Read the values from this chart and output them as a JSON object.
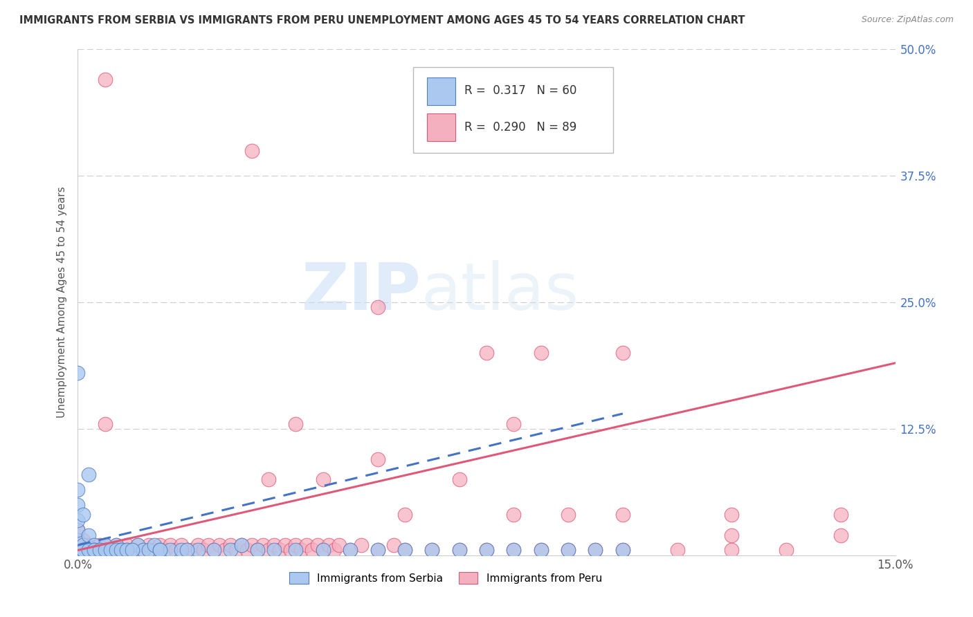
{
  "title": "IMMIGRANTS FROM SERBIA VS IMMIGRANTS FROM PERU UNEMPLOYMENT AMONG AGES 45 TO 54 YEARS CORRELATION CHART",
  "source": "Source: ZipAtlas.com",
  "ylabel": "Unemployment Among Ages 45 to 54 years",
  "xlim": [
    0.0,
    0.15
  ],
  "ylim": [
    0.0,
    0.5
  ],
  "ytick_values": [
    0.125,
    0.25,
    0.375,
    0.5
  ],
  "ytick_labels": [
    "12.5%",
    "25.0%",
    "37.5%",
    "50.0%"
  ],
  "xtick_values": [
    0.0,
    0.15
  ],
  "xtick_labels": [
    "0.0%",
    "15.0%"
  ],
  "legend_label1": "Immigrants from Serbia",
  "legend_label2": "Immigrants from Peru",
  "R1": "0.317",
  "N1": "60",
  "R2": "0.290",
  "N2": "89",
  "color_serbia": "#aac8f0",
  "color_peru": "#f5b0c0",
  "edge_serbia": "#5580c0",
  "edge_peru": "#e05878",
  "line_serbia": "#4472c4",
  "line_peru": "#e05878",
  "watermark_zip": "ZIP",
  "watermark_atlas": "atlas",
  "serbia_x": [
    0.0,
    0.0,
    0.0,
    0.002,
    0.0,
    0.001,
    0.0,
    0.001,
    0.002,
    0.003,
    0.0,
    0.001,
    0.002,
    0.003,
    0.004,
    0.005,
    0.006,
    0.007,
    0.008,
    0.009,
    0.01,
    0.011,
    0.012,
    0.013,
    0.014,
    0.015,
    0.017,
    0.019,
    0.022,
    0.025,
    0.028,
    0.03,
    0.033,
    0.036,
    0.04,
    0.045,
    0.05,
    0.055,
    0.06,
    0.065,
    0.07,
    0.075,
    0.08,
    0.085,
    0.09,
    0.095,
    0.1,
    0.0,
    0.001,
    0.002,
    0.003,
    0.004,
    0.005,
    0.006,
    0.007,
    0.008,
    0.009,
    0.01,
    0.015,
    0.02
  ],
  "serbia_y": [
    0.005,
    0.015,
    0.025,
    0.005,
    0.035,
    0.01,
    0.05,
    0.04,
    0.02,
    0.01,
    0.065,
    0.005,
    0.08,
    0.005,
    0.005,
    0.01,
    0.005,
    0.01,
    0.005,
    0.005,
    0.005,
    0.01,
    0.005,
    0.005,
    0.01,
    0.005,
    0.005,
    0.005,
    0.005,
    0.005,
    0.005,
    0.01,
    0.005,
    0.005,
    0.005,
    0.005,
    0.005,
    0.005,
    0.005,
    0.005,
    0.005,
    0.005,
    0.005,
    0.005,
    0.005,
    0.005,
    0.005,
    0.18,
    0.005,
    0.005,
    0.005,
    0.005,
    0.005,
    0.005,
    0.005,
    0.005,
    0.005,
    0.005,
    0.005,
    0.005
  ],
  "peru_x": [
    0.0,
    0.0,
    0.0,
    0.001,
    0.001,
    0.002,
    0.003,
    0.004,
    0.005,
    0.006,
    0.007,
    0.008,
    0.009,
    0.01,
    0.011,
    0.012,
    0.013,
    0.014,
    0.015,
    0.016,
    0.017,
    0.018,
    0.019,
    0.02,
    0.021,
    0.022,
    0.023,
    0.024,
    0.025,
    0.026,
    0.027,
    0.028,
    0.029,
    0.03,
    0.031,
    0.032,
    0.033,
    0.034,
    0.035,
    0.036,
    0.037,
    0.038,
    0.039,
    0.04,
    0.041,
    0.042,
    0.043,
    0.044,
    0.045,
    0.046,
    0.047,
    0.048,
    0.05,
    0.052,
    0.055,
    0.058,
    0.06,
    0.065,
    0.07,
    0.075,
    0.08,
    0.085,
    0.09,
    0.095,
    0.1,
    0.11,
    0.12,
    0.13,
    0.005,
    0.032,
    0.055,
    0.075,
    0.085,
    0.1,
    0.12,
    0.14,
    0.005,
    0.04,
    0.08,
    0.055,
    0.07,
    0.09,
    0.035,
    0.045,
    0.06,
    0.08,
    0.1,
    0.12,
    0.14
  ],
  "peru_y": [
    0.005,
    0.015,
    0.025,
    0.005,
    0.015,
    0.01,
    0.005,
    0.01,
    0.01,
    0.005,
    0.01,
    0.005,
    0.01,
    0.005,
    0.01,
    0.005,
    0.01,
    0.005,
    0.01,
    0.005,
    0.01,
    0.005,
    0.01,
    0.005,
    0.005,
    0.01,
    0.005,
    0.01,
    0.005,
    0.01,
    0.005,
    0.01,
    0.005,
    0.01,
    0.005,
    0.01,
    0.005,
    0.01,
    0.005,
    0.01,
    0.005,
    0.01,
    0.005,
    0.01,
    0.005,
    0.01,
    0.005,
    0.01,
    0.005,
    0.01,
    0.005,
    0.01,
    0.005,
    0.01,
    0.005,
    0.01,
    0.005,
    0.005,
    0.005,
    0.005,
    0.005,
    0.005,
    0.005,
    0.005,
    0.005,
    0.005,
    0.005,
    0.005,
    0.47,
    0.4,
    0.245,
    0.2,
    0.2,
    0.2,
    0.02,
    0.02,
    0.13,
    0.13,
    0.13,
    0.095,
    0.075,
    0.04,
    0.075,
    0.075,
    0.04,
    0.04,
    0.04,
    0.04,
    0.04
  ],
  "serbia_line_x0": 0.0,
  "serbia_line_x1": 0.1,
  "serbia_line_y0": 0.01,
  "serbia_line_y1": 0.14,
  "peru_line_x0": 0.0,
  "peru_line_x1": 0.15,
  "peru_line_y0": 0.005,
  "peru_line_y1": 0.19
}
